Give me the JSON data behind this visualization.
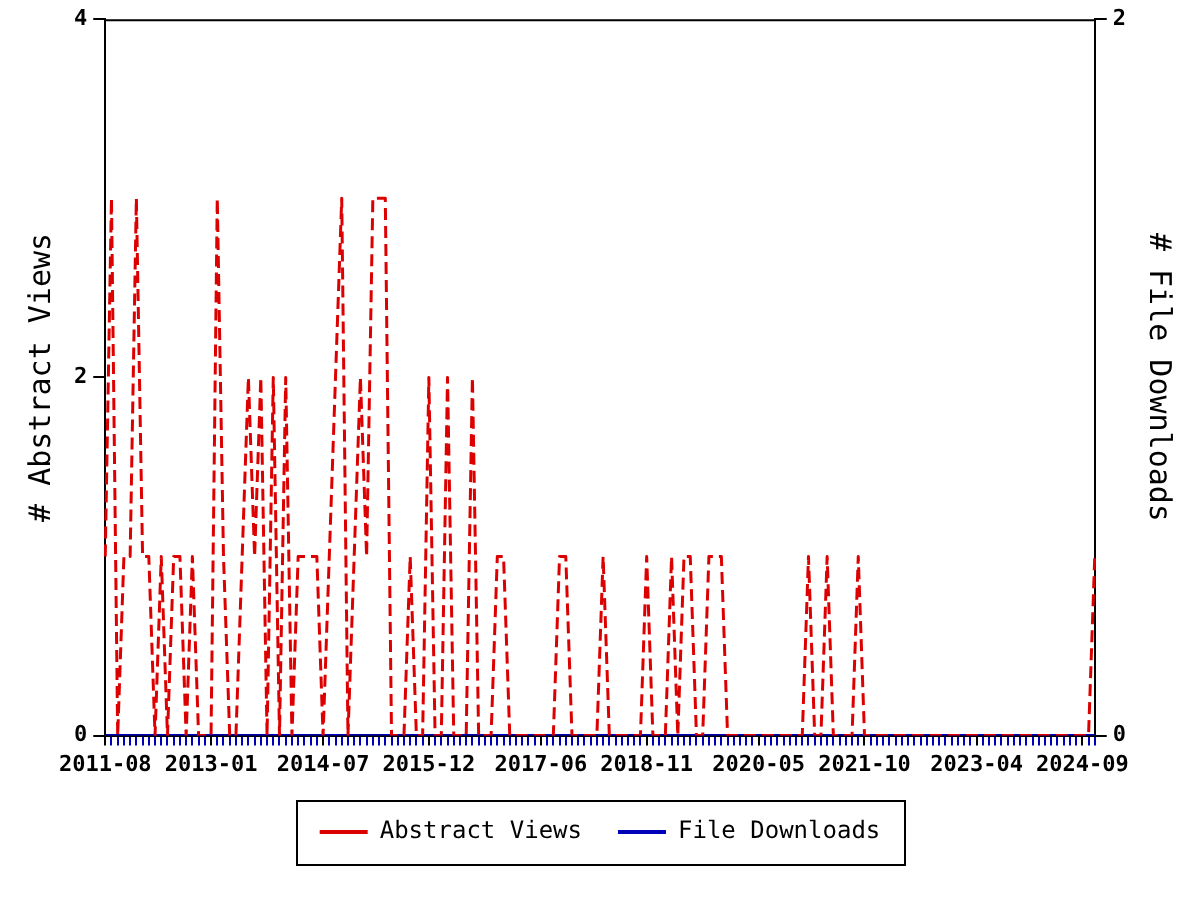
{
  "chart_data": {
    "type": "line",
    "xlabel": null,
    "ylabel": "# Abstract Views",
    "y2label": "# File Downloads",
    "categories": [
      "2011-08",
      null,
      null,
      null,
      null,
      null,
      null,
      null,
      null,
      null,
      null,
      null,
      null,
      null,
      null,
      null,
      null,
      "2013-01",
      null,
      null,
      null,
      null,
      null,
      null,
      null,
      null,
      null,
      null,
      null,
      null,
      null,
      null,
      null,
      null,
      null,
      "2014-07",
      null,
      null,
      null,
      null,
      null,
      null,
      null,
      null,
      null,
      null,
      null,
      null,
      null,
      null,
      null,
      null,
      "2015-12",
      null,
      null,
      null,
      null,
      null,
      null,
      null,
      null,
      null,
      null,
      null,
      null,
      null,
      null,
      null,
      null,
      null,
      "2017-06",
      null,
      null,
      null,
      null,
      null,
      null,
      null,
      null,
      null,
      null,
      null,
      null,
      null,
      null,
      null,
      null,
      "2018-11",
      null,
      null,
      null,
      null,
      null,
      null,
      null,
      null,
      null,
      null,
      null,
      null,
      null,
      null,
      null,
      null,
      null,
      "2020-05",
      null,
      null,
      null,
      null,
      null,
      null,
      null,
      null,
      null,
      null,
      null,
      null,
      null,
      null,
      null,
      null,
      "2021-10",
      null,
      null,
      null,
      null,
      null,
      null,
      null,
      null,
      null,
      null,
      null,
      null,
      null,
      null,
      null,
      null,
      null,
      "2023-04",
      null,
      null,
      null,
      null,
      null,
      null,
      null,
      null,
      null,
      null,
      null,
      null,
      null,
      null,
      null,
      null,
      "2024-09",
      null,
      null
    ],
    "series": [
      {
        "name": "Abstract Views",
        "color": "#dd0000",
        "line_style": "dashed",
        "values": [
          1,
          3,
          0,
          1,
          1,
          3,
          1,
          1,
          0,
          1,
          0,
          1,
          1,
          0,
          1,
          0,
          0,
          0,
          3,
          1,
          0,
          0,
          1,
          2,
          1,
          2,
          0,
          2,
          0,
          2,
          0,
          1,
          1,
          1,
          1,
          0,
          1,
          2,
          3,
          0,
          1,
          2,
          1,
          3,
          3,
          3,
          0,
          0,
          0,
          1,
          0,
          0,
          2,
          0,
          0,
          2,
          0,
          0,
          0,
          2,
          0,
          0,
          0,
          1,
          1,
          0,
          0,
          0,
          0,
          0,
          0,
          0,
          0,
          1,
          1,
          0,
          0,
          0,
          0,
          0,
          1,
          0,
          0,
          0,
          0,
          0,
          0,
          1,
          0,
          0,
          0,
          1,
          0,
          1,
          1,
          0,
          0,
          1,
          1,
          1,
          0,
          0,
          0,
          0,
          0,
          0,
          0,
          0,
          0,
          0,
          0,
          0,
          0,
          1,
          0,
          0,
          1,
          0,
          0,
          0,
          0,
          1,
          0,
          0,
          0,
          0,
          0,
          0,
          0,
          0,
          0,
          0,
          0,
          0,
          0,
          0,
          0,
          0,
          0,
          0,
          0,
          0,
          0,
          0,
          0,
          0,
          0,
          0,
          0,
          0,
          0,
          0,
          0,
          0,
          0,
          0,
          0,
          0,
          0,
          1
        ]
      },
      {
        "name": "File Downloads",
        "color": "#0000bb",
        "line_style": "solid",
        "axis": "y2",
        "values": [
          0,
          0,
          0,
          0,
          0,
          0,
          0,
          0,
          0,
          0,
          0,
          0,
          0,
          0,
          0,
          0,
          0,
          0,
          0,
          0,
          0,
          0,
          0,
          0,
          0,
          0,
          0,
          0,
          0,
          0,
          0,
          0,
          0,
          0,
          0,
          0,
          0,
          0,
          0,
          0,
          0,
          0,
          0,
          0,
          0,
          0,
          0,
          0,
          0,
          0,
          0,
          0,
          0,
          0,
          0,
          0,
          0,
          0,
          0,
          0,
          0,
          0,
          0,
          0,
          0,
          0,
          0,
          0,
          0,
          0,
          0,
          0,
          0,
          0,
          0,
          0,
          0,
          0,
          0,
          0,
          0,
          0,
          0,
          0,
          0,
          0,
          0,
          0,
          0,
          0,
          0,
          0,
          0,
          0,
          0,
          0,
          0,
          0,
          0,
          0,
          0,
          0,
          0,
          0,
          0,
          0,
          0,
          0,
          0,
          0,
          0,
          0,
          0,
          0,
          0,
          0,
          0,
          0,
          0,
          0,
          0,
          0,
          0,
          0,
          0,
          0,
          0,
          0,
          0,
          0,
          0,
          0,
          0,
          0,
          0,
          0,
          0,
          0,
          0,
          0,
          0,
          0,
          0,
          0,
          0,
          0,
          0,
          0,
          0,
          0,
          0,
          0,
          0,
          0,
          0,
          0,
          0,
          0,
          0,
          0
        ]
      }
    ],
    "ylim": [
      0,
      4
    ],
    "yticks": [
      0,
      2,
      4
    ],
    "y2lim": [
      0,
      2
    ],
    "y2ticks": [
      0,
      2
    ],
    "grid": false,
    "legend": "bottom",
    "marker": "none"
  }
}
